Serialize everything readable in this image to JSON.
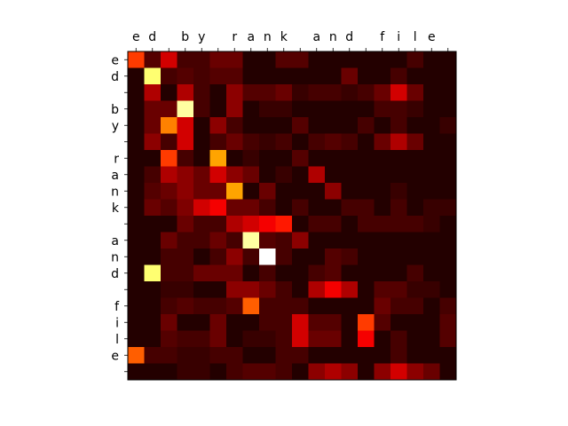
{
  "chart_data": {
    "type": "heatmap",
    "colormap": "hot",
    "x_tick_labels": [
      "e",
      "d",
      " ",
      "b",
      "y",
      " ",
      "r",
      "a",
      "n",
      "k",
      " ",
      "a",
      "n",
      "d",
      " ",
      "f",
      "i",
      "l",
      "e",
      " "
    ],
    "y_tick_labels": [
      "e",
      "d",
      " ",
      "b",
      "y",
      " ",
      "r",
      "a",
      "n",
      "k",
      " ",
      "a",
      "n",
      "d",
      " ",
      "f",
      "i",
      "l",
      "e",
      " "
    ],
    "vmin": 0,
    "vmax": 1,
    "matrix": [
      [
        0.45,
        0.12,
        0.3,
        0.1,
        0.1,
        0.15,
        0.15,
        0.05,
        0.05,
        0.12,
        0.12,
        0.05,
        0.05,
        0.05,
        0.05,
        0.05,
        0.05,
        0.1,
        0.05,
        0.05
      ],
      [
        0.05,
        0.85,
        0.1,
        0.12,
        0.1,
        0.12,
        0.12,
        0.05,
        0.05,
        0.05,
        0.05,
        0.05,
        0.05,
        0.15,
        0.05,
        0.05,
        0.1,
        0.05,
        0.05,
        0.05
      ],
      [
        0.05,
        0.25,
        0.05,
        0.25,
        0.1,
        0.05,
        0.2,
        0.12,
        0.12,
        0.15,
        0.08,
        0.1,
        0.1,
        0.08,
        0.1,
        0.15,
        0.3,
        0.15,
        0.05,
        0.05
      ],
      [
        0.05,
        0.15,
        0.15,
        0.9,
        0.1,
        0.05,
        0.2,
        0.05,
        0.08,
        0.08,
        0.05,
        0.05,
        0.05,
        0.05,
        0.05,
        0.1,
        0.1,
        0.08,
        0.05,
        0.05
      ],
      [
        0.05,
        0.15,
        0.55,
        0.3,
        0.05,
        0.2,
        0.1,
        0.05,
        0.05,
        0.05,
        0.12,
        0.05,
        0.05,
        0.05,
        0.1,
        0.05,
        0.1,
        0.05,
        0.05,
        0.08
      ],
      [
        0.05,
        0.2,
        0.1,
        0.3,
        0.05,
        0.1,
        0.15,
        0.1,
        0.08,
        0.1,
        0.05,
        0.1,
        0.12,
        0.1,
        0.05,
        0.15,
        0.25,
        0.15,
        0.05,
        0.05
      ],
      [
        0.05,
        0.05,
        0.45,
        0.1,
        0.05,
        0.6,
        0.05,
        0.08,
        0.05,
        0.05,
        0.12,
        0.05,
        0.05,
        0.05,
        0.05,
        0.05,
        0.05,
        0.05,
        0.05,
        0.05
      ],
      [
        0.05,
        0.1,
        0.25,
        0.2,
        0.15,
        0.3,
        0.2,
        0.15,
        0.05,
        0.08,
        0.05,
        0.25,
        0.05,
        0.05,
        0.05,
        0.05,
        0.05,
        0.05,
        0.05,
        0.05
      ],
      [
        0.05,
        0.12,
        0.15,
        0.2,
        0.15,
        0.15,
        0.6,
        0.05,
        0.15,
        0.05,
        0.05,
        0.05,
        0.2,
        0.05,
        0.05,
        0.05,
        0.08,
        0.05,
        0.05,
        0.05
      ],
      [
        0.05,
        0.15,
        0.12,
        0.18,
        0.3,
        0.35,
        0.15,
        0.15,
        0.1,
        0.05,
        0.1,
        0.05,
        0.05,
        0.1,
        0.1,
        0.05,
        0.1,
        0.05,
        0.08,
        0.08
      ],
      [
        0.05,
        0.05,
        0.05,
        0.15,
        0.1,
        0.1,
        0.25,
        0.3,
        0.35,
        0.4,
        0.05,
        0.1,
        0.1,
        0.05,
        0.1,
        0.1,
        0.1,
        0.1,
        0.08,
        0.05
      ],
      [
        0.05,
        0.05,
        0.15,
        0.1,
        0.1,
        0.15,
        0.1,
        0.9,
        0.12,
        0.1,
        0.2,
        0.05,
        0.05,
        0.05,
        0.05,
        0.05,
        0.05,
        0.05,
        0.05,
        0.05
      ],
      [
        0.05,
        0.05,
        0.1,
        0.1,
        0.05,
        0.1,
        0.2,
        0.1,
        1.0,
        0.1,
        0.05,
        0.05,
        0.12,
        0.1,
        0.05,
        0.05,
        0.05,
        0.05,
        0.05,
        0.05
      ],
      [
        0.05,
        0.85,
        0.1,
        0.1,
        0.15,
        0.15,
        0.15,
        0.05,
        0.1,
        0.05,
        0.05,
        0.1,
        0.12,
        0.05,
        0.05,
        0.05,
        0.05,
        0.1,
        0.05,
        0.05
      ],
      [
        0.05,
        0.05,
        0.08,
        0.08,
        0.05,
        0.05,
        0.2,
        0.2,
        0.15,
        0.1,
        0.05,
        0.25,
        0.35,
        0.25,
        0.05,
        0.12,
        0.12,
        0.08,
        0.08,
        0.05
      ],
      [
        0.05,
        0.05,
        0.1,
        0.12,
        0.1,
        0.1,
        0.12,
        0.5,
        0.1,
        0.1,
        0.1,
        0.05,
        0.05,
        0.05,
        0.05,
        0.15,
        0.1,
        0.1,
        0.05,
        0.1
      ],
      [
        0.05,
        0.05,
        0.15,
        0.05,
        0.05,
        0.15,
        0.05,
        0.05,
        0.1,
        0.1,
        0.3,
        0.12,
        0.12,
        0.05,
        0.45,
        0.12,
        0.05,
        0.05,
        0.05,
        0.12
      ],
      [
        0.05,
        0.05,
        0.12,
        0.1,
        0.1,
        0.15,
        0.05,
        0.08,
        0.08,
        0.1,
        0.3,
        0.15,
        0.15,
        0.05,
        0.35,
        0.05,
        0.1,
        0.05,
        0.05,
        0.12
      ],
      [
        0.5,
        0.1,
        0.1,
        0.08,
        0.08,
        0.1,
        0.1,
        0.05,
        0.05,
        0.1,
        0.1,
        0.05,
        0.05,
        0.05,
        0.05,
        0.05,
        0.1,
        0.05,
        0.05,
        0.05
      ],
      [
        0.05,
        0.05,
        0.05,
        0.08,
        0.08,
        0.05,
        0.1,
        0.12,
        0.12,
        0.1,
        0.05,
        0.2,
        0.25,
        0.2,
        0.05,
        0.2,
        0.3,
        0.2,
        0.15,
        0.05
      ]
    ]
  }
}
